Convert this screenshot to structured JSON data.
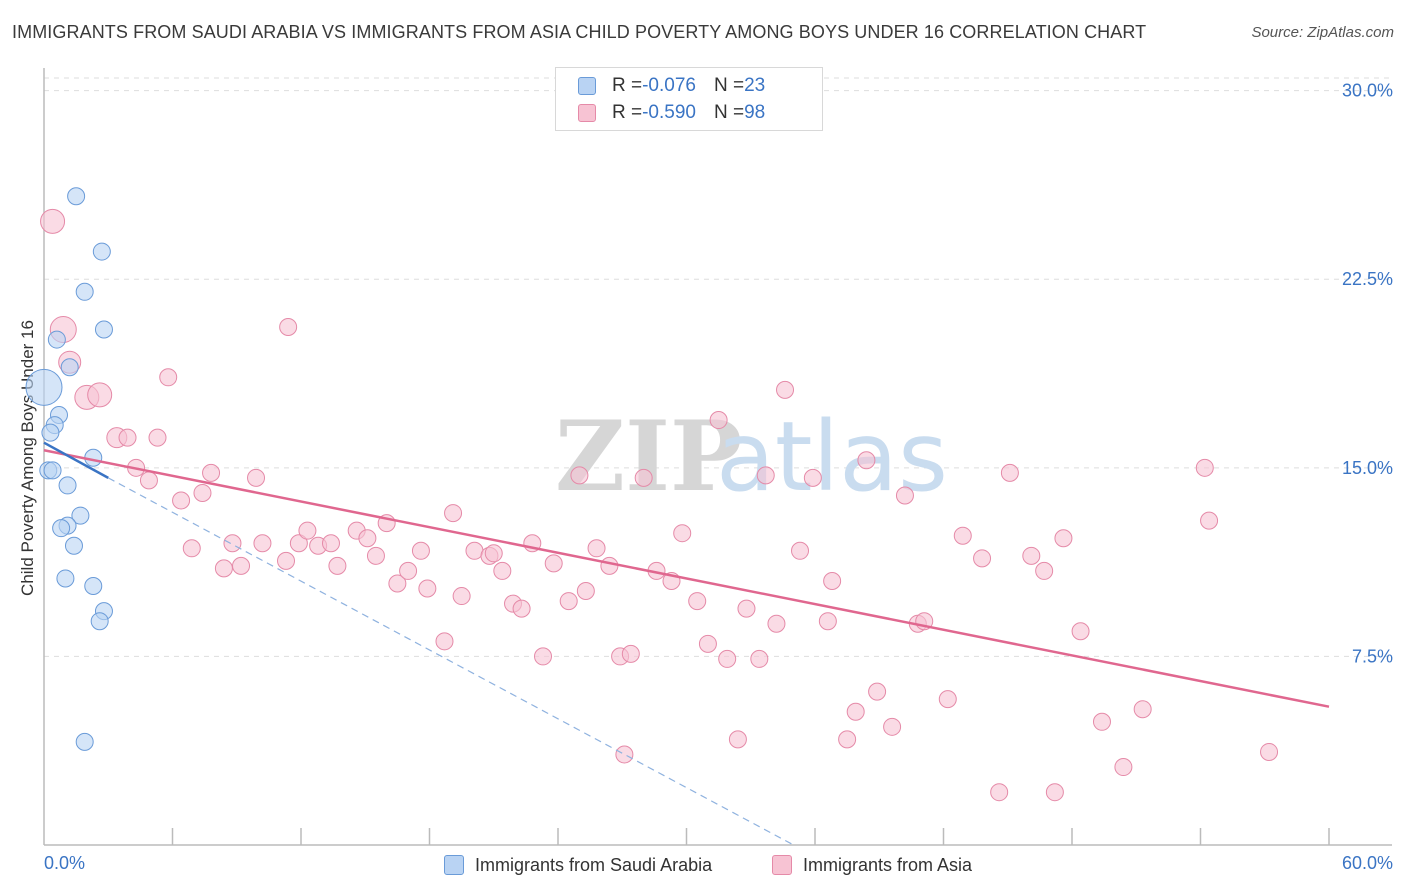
{
  "title": "IMMIGRANTS FROM SAUDI ARABIA VS IMMIGRANTS FROM ASIA CHILD POVERTY AMONG BOYS UNDER 16 CORRELATION CHART",
  "source": "Source: ZipAtlas.com",
  "watermark": {
    "zip": "ZIP",
    "atlas": "atlas"
  },
  "colors": {
    "saudi_fill": "#b9d3f3",
    "saudi_stroke": "#6a9bd8",
    "saudi_line": "#3a74c4",
    "asia_fill": "#f7c3d3",
    "asia_stroke": "#e58aa8",
    "asia_line": "#e0678f",
    "grid": "#dddddd",
    "tick_text": "#3a74c4"
  },
  "legend": {
    "rows": [
      {
        "r_label": "R = ",
        "r_value": "-0.076",
        "n_label": "N = ",
        "n_value": "23"
      },
      {
        "r_label": "R = ",
        "r_value": "-0.590",
        "n_label": "N = ",
        "n_value": "98"
      }
    ]
  },
  "bottom_legend": {
    "saudi": "Immigrants from Saudi Arabia",
    "asia": "Immigrants from Asia"
  },
  "chart_data": {
    "type": "scatter",
    "title": "IMMIGRANTS FROM SAUDI ARABIA VS IMMIGRANTS FROM ASIA CHILD POVERTY AMONG BOYS UNDER 16 CORRELATION CHART",
    "xlabel": "",
    "ylabel": "Child Poverty Among Boys Under 16",
    "xlim": [
      0,
      60
    ],
    "ylim": [
      0,
      30.9
    ],
    "x_tick_labels": {
      "left": "0.0%",
      "right": "60.0%"
    },
    "y_ticks": [
      {
        "value": 30.0,
        "label": "30.0%"
      },
      {
        "value": 22.5,
        "label": "22.5%"
      },
      {
        "value": 15.0,
        "label": "15.0%"
      },
      {
        "value": 7.5,
        "label": "7.5%"
      }
    ],
    "series": [
      {
        "name": "Immigrants from Saudi Arabia",
        "R": -0.076,
        "N": 23,
        "trend": {
          "x": [
            0,
            3.0
          ],
          "y": [
            16.0,
            14.6
          ]
        },
        "trend_extension": {
          "x": [
            3.0,
            35.0
          ],
          "y": [
            14.6,
            0.0
          ]
        },
        "points": [
          {
            "x": 0.0,
            "y": 18.2,
            "s": 18
          },
          {
            "x": 1.5,
            "y": 25.8
          },
          {
            "x": 2.7,
            "y": 23.6
          },
          {
            "x": 1.9,
            "y": 22.0
          },
          {
            "x": 2.8,
            "y": 20.5
          },
          {
            "x": 0.6,
            "y": 20.1
          },
          {
            "x": 1.2,
            "y": 19.0
          },
          {
            "x": 0.7,
            "y": 17.1
          },
          {
            "x": 0.5,
            "y": 16.7
          },
          {
            "x": 0.3,
            "y": 16.4
          },
          {
            "x": 2.3,
            "y": 15.4
          },
          {
            "x": 0.2,
            "y": 14.9
          },
          {
            "x": 0.4,
            "y": 14.9
          },
          {
            "x": 1.1,
            "y": 14.3
          },
          {
            "x": 1.7,
            "y": 13.1
          },
          {
            "x": 1.1,
            "y": 12.7
          },
          {
            "x": 0.8,
            "y": 12.6
          },
          {
            "x": 1.4,
            "y": 11.9
          },
          {
            "x": 1.0,
            "y": 10.6
          },
          {
            "x": 2.3,
            "y": 10.3
          },
          {
            "x": 2.8,
            "y": 9.3
          },
          {
            "x": 2.6,
            "y": 8.9
          },
          {
            "x": 1.9,
            "y": 4.1
          }
        ]
      },
      {
        "name": "Immigrants from Asia",
        "R": -0.59,
        "N": 98,
        "trend": {
          "x": [
            0,
            60
          ],
          "y": [
            15.7,
            5.5
          ]
        },
        "points": [
          {
            "x": 0.4,
            "y": 24.8,
            "s": 12
          },
          {
            "x": 0.9,
            "y": 20.5,
            "s": 13
          },
          {
            "x": 1.2,
            "y": 19.2,
            "s": 11
          },
          {
            "x": 2.0,
            "y": 17.8,
            "s": 12
          },
          {
            "x": 2.6,
            "y": 17.9,
            "s": 12
          },
          {
            "x": 3.4,
            "y": 16.2,
            "s": 10
          },
          {
            "x": 3.9,
            "y": 16.2
          },
          {
            "x": 5.3,
            "y": 16.2
          },
          {
            "x": 4.3,
            "y": 15.0
          },
          {
            "x": 4.9,
            "y": 14.5
          },
          {
            "x": 5.8,
            "y": 18.6
          },
          {
            "x": 6.4,
            "y": 13.7
          },
          {
            "x": 6.9,
            "y": 11.8
          },
          {
            "x": 7.4,
            "y": 14.0
          },
          {
            "x": 7.8,
            "y": 14.8
          },
          {
            "x": 8.4,
            "y": 11.0
          },
          {
            "x": 8.8,
            "y": 12.0
          },
          {
            "x": 9.2,
            "y": 11.1
          },
          {
            "x": 9.9,
            "y": 14.6
          },
          {
            "x": 10.2,
            "y": 12.0
          },
          {
            "x": 11.3,
            "y": 11.3
          },
          {
            "x": 11.4,
            "y": 20.6
          },
          {
            "x": 11.9,
            "y": 12.0
          },
          {
            "x": 12.3,
            "y": 12.5
          },
          {
            "x": 12.8,
            "y": 11.9
          },
          {
            "x": 13.4,
            "y": 12.0
          },
          {
            "x": 13.7,
            "y": 11.1
          },
          {
            "x": 14.6,
            "y": 12.5
          },
          {
            "x": 15.1,
            "y": 12.2
          },
          {
            "x": 15.5,
            "y": 11.5
          },
          {
            "x": 16.0,
            "y": 12.8
          },
          {
            "x": 16.5,
            "y": 10.4
          },
          {
            "x": 17.0,
            "y": 10.9
          },
          {
            "x": 17.6,
            "y": 11.7
          },
          {
            "x": 17.9,
            "y": 10.2
          },
          {
            "x": 18.7,
            "y": 8.1
          },
          {
            "x": 19.1,
            "y": 13.2
          },
          {
            "x": 19.5,
            "y": 9.9
          },
          {
            "x": 20.1,
            "y": 11.7
          },
          {
            "x": 20.8,
            "y": 11.5
          },
          {
            "x": 21.4,
            "y": 10.9
          },
          {
            "x": 21.9,
            "y": 9.6
          },
          {
            "x": 22.3,
            "y": 9.4
          },
          {
            "x": 22.8,
            "y": 12.0
          },
          {
            "x": 23.3,
            "y": 7.5
          },
          {
            "x": 23.8,
            "y": 11.2
          },
          {
            "x": 24.5,
            "y": 9.7
          },
          {
            "x": 25.0,
            "y": 14.7
          },
          {
            "x": 25.3,
            "y": 10.1
          },
          {
            "x": 25.8,
            "y": 11.8
          },
          {
            "x": 26.4,
            "y": 11.1
          },
          {
            "x": 26.9,
            "y": 7.5
          },
          {
            "x": 27.1,
            "y": 3.6
          },
          {
            "x": 27.4,
            "y": 7.6
          },
          {
            "x": 28.0,
            "y": 14.6
          },
          {
            "x": 28.6,
            "y": 10.9
          },
          {
            "x": 29.3,
            "y": 10.5
          },
          {
            "x": 29.8,
            "y": 12.4
          },
          {
            "x": 30.5,
            "y": 9.7
          },
          {
            "x": 31.0,
            "y": 8.0
          },
          {
            "x": 31.5,
            "y": 16.9
          },
          {
            "x": 31.9,
            "y": 7.4
          },
          {
            "x": 32.4,
            "y": 4.2
          },
          {
            "x": 32.8,
            "y": 9.4
          },
          {
            "x": 33.4,
            "y": 7.4
          },
          {
            "x": 33.7,
            "y": 14.7
          },
          {
            "x": 34.2,
            "y": 8.8
          },
          {
            "x": 34.6,
            "y": 18.1
          },
          {
            "x": 35.3,
            "y": 11.7
          },
          {
            "x": 35.9,
            "y": 14.6
          },
          {
            "x": 36.6,
            "y": 8.9
          },
          {
            "x": 36.8,
            "y": 10.5
          },
          {
            "x": 37.5,
            "y": 4.2
          },
          {
            "x": 37.9,
            "y": 5.3
          },
          {
            "x": 38.4,
            "y": 15.3
          },
          {
            "x": 38.9,
            "y": 6.1
          },
          {
            "x": 39.6,
            "y": 4.7
          },
          {
            "x": 40.2,
            "y": 13.9
          },
          {
            "x": 40.8,
            "y": 8.8
          },
          {
            "x": 41.1,
            "y": 8.9
          },
          {
            "x": 42.2,
            "y": 5.8
          },
          {
            "x": 42.9,
            "y": 12.3
          },
          {
            "x": 43.8,
            "y": 11.4
          },
          {
            "x": 44.6,
            "y": 2.1
          },
          {
            "x": 45.1,
            "y": 14.8
          },
          {
            "x": 46.1,
            "y": 11.5
          },
          {
            "x": 46.7,
            "y": 10.9
          },
          {
            "x": 47.2,
            "y": 2.1
          },
          {
            "x": 47.6,
            "y": 12.2
          },
          {
            "x": 48.4,
            "y": 8.5
          },
          {
            "x": 49.4,
            "y": 4.9
          },
          {
            "x": 50.4,
            "y": 3.1
          },
          {
            "x": 51.3,
            "y": 5.4
          },
          {
            "x": 54.4,
            "y": 12.9
          },
          {
            "x": 54.2,
            "y": 15.0
          },
          {
            "x": 57.2,
            "y": 3.7
          },
          {
            "x": 21.0,
            "y": 11.6
          }
        ]
      }
    ]
  }
}
